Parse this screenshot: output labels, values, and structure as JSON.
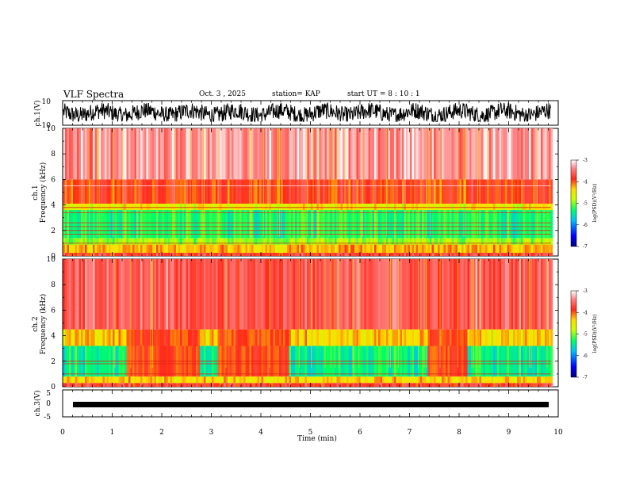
{
  "header": {
    "title": "VLF Spectra",
    "date": "Oct. 3  , 2025",
    "station": "station= KAP",
    "start": "start  UT =   8  : 10 : 1"
  },
  "chart_data": [
    {
      "type": "line",
      "name": "ch1-waveform",
      "ylabel": "ch.1(V)",
      "ylim": [
        -10,
        10
      ],
      "yticks": [
        "10",
        "-10"
      ],
      "xlim": [
        0,
        10
      ],
      "description_signal": "noisy waveform spanning roughly -7 to 8 V"
    },
    {
      "type": "heatmap",
      "name": "ch1-spectrogram",
      "ylabel": "ch.1",
      "ylabel2": "Frequency  (kHz)",
      "ylim": [
        0,
        10
      ],
      "yticks": [
        "0",
        "2",
        "4",
        "6",
        "8",
        "10"
      ],
      "xlim": [
        0,
        9.85
      ],
      "colorbar": {
        "label": "log(PSD)(V²/Hz)",
        "ticks": [
          "-3",
          "-4",
          "-5",
          "-6",
          "-7"
        ],
        "range": [
          -7,
          -3
        ]
      },
      "bands": [
        {
          "f0": 0.0,
          "f1": 0.25,
          "level": -3.8
        },
        {
          "f0": 0.25,
          "f1": 0.9,
          "level": -4.3
        },
        {
          "f0": 0.9,
          "f1": 1.4,
          "level": -4.9
        },
        {
          "f0": 1.4,
          "f1": 3.6,
          "level": -5.3
        },
        {
          "f0": 3.6,
          "f1": 4.1,
          "level": -4.6
        },
        {
          "f0": 4.1,
          "f1": 6.0,
          "level": -3.9
        },
        {
          "f0": 6.0,
          "f1": 10.0,
          "level": -3.35
        }
      ],
      "lines_khz": [
        1.0,
        1.7,
        2.0,
        2.3,
        2.6,
        3.4,
        3.8,
        5.5
      ]
    },
    {
      "type": "heatmap",
      "name": "ch2-spectrogram",
      "ylabel": "ch.2",
      "ylabel2": "Frequency  (kHz)",
      "ylim": [
        0,
        10
      ],
      "yticks": [
        "0",
        "2",
        "4",
        "6",
        "8",
        "10"
      ],
      "xlim": [
        0,
        9.85
      ],
      "colorbar": {
        "label": "log(PSD)(V²/Hz)",
        "ticks": [
          "-3",
          "-4",
          "-5",
          "-6",
          "-7"
        ],
        "range": [
          -7,
          -3
        ]
      },
      "bands": [
        {
          "f0": 0.0,
          "f1": 0.3,
          "level": -3.8
        },
        {
          "f0": 0.3,
          "f1": 0.8,
          "level": -4.4
        },
        {
          "f0": 0.8,
          "f1": 3.2,
          "level": -5.4
        },
        {
          "f0": 3.2,
          "f1": 4.5,
          "level": -4.4
        },
        {
          "f0": 4.5,
          "f1": 10.0,
          "level": -3.6
        }
      ],
      "quiet_intervals_min": [
        [
          1.25,
          2.75
        ],
        [
          3.1,
          4.55
        ],
        [
          7.35,
          8.15
        ]
      ],
      "lines_khz": [
        1.0,
        1.8,
        2.0
      ]
    },
    {
      "type": "line",
      "name": "ch3-waveform",
      "ylabel": "ch.3(V)",
      "ylim": [
        -5,
        5
      ],
      "yticks": [
        "5",
        "0",
        "-5"
      ],
      "xlim": [
        0,
        10
      ],
      "xlabel": "Time  (min)",
      "xticks": [
        "0",
        "1",
        "2",
        "3",
        "4",
        "5",
        "6",
        "7",
        "8",
        "9",
        "10"
      ],
      "description_signal": "thick band near -1 V"
    }
  ]
}
